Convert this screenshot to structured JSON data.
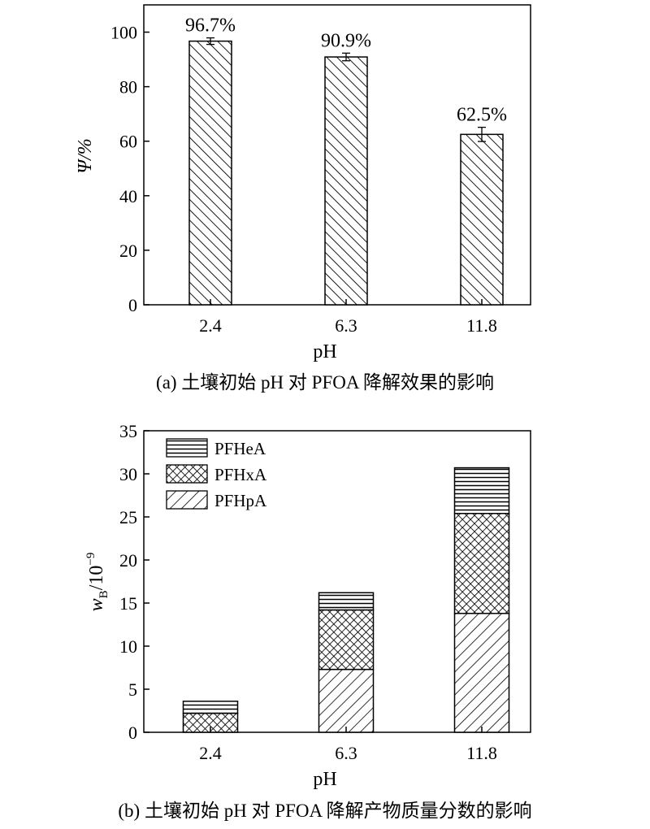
{
  "chart_data": [
    {
      "type": "bar",
      "panel": "a",
      "categories": [
        "2.4",
        "6.3",
        "11.8"
      ],
      "values": [
        96.7,
        90.9,
        62.5
      ],
      "errors": [
        1.2,
        1.4,
        2.6
      ],
      "data_labels": [
        "96.7%",
        "90.9%",
        "62.5%"
      ],
      "xlabel": "pH",
      "ylabel": "Ψ/%",
      "ylim": [
        0,
        110
      ],
      "yticks": [
        0,
        20,
        40,
        60,
        80,
        100
      ],
      "grid": false,
      "fill_pattern": "diagonal-hatch",
      "caption": "(a) 土壤初始 pH 对 PFOA 降解效果的影响"
    },
    {
      "type": "bar",
      "stacked": true,
      "panel": "b",
      "categories": [
        "2.4",
        "6.3",
        "11.8"
      ],
      "series": [
        {
          "name": "PFHpA",
          "values": [
            0.0,
            7.3,
            13.8
          ],
          "pattern": "back-diagonal-hatch"
        },
        {
          "name": "PFHxA",
          "values": [
            2.2,
            6.9,
            11.6
          ],
          "pattern": "crosshatch"
        },
        {
          "name": "PFHeA",
          "values": [
            1.4,
            2.0,
            5.3
          ],
          "pattern": "horizontal-lines"
        }
      ],
      "legend_order": [
        "PFHeA",
        "PFHxA",
        "PFHpA"
      ],
      "legend_position": "top-left",
      "xlabel": "pH",
      "ylabel_main": "w",
      "ylabel_sub": "B",
      "ylabel_tail": "/10",
      "ylabel_sup": "−9",
      "ylim": [
        0,
        35
      ],
      "yticks": [
        0,
        5,
        10,
        15,
        20,
        25,
        30,
        35
      ],
      "grid": false,
      "caption": "(b) 土壤初始 pH 对 PFOA 降解产物质量分数的影响"
    }
  ],
  "colors": {
    "ink": "#000000",
    "background": "#ffffff"
  }
}
